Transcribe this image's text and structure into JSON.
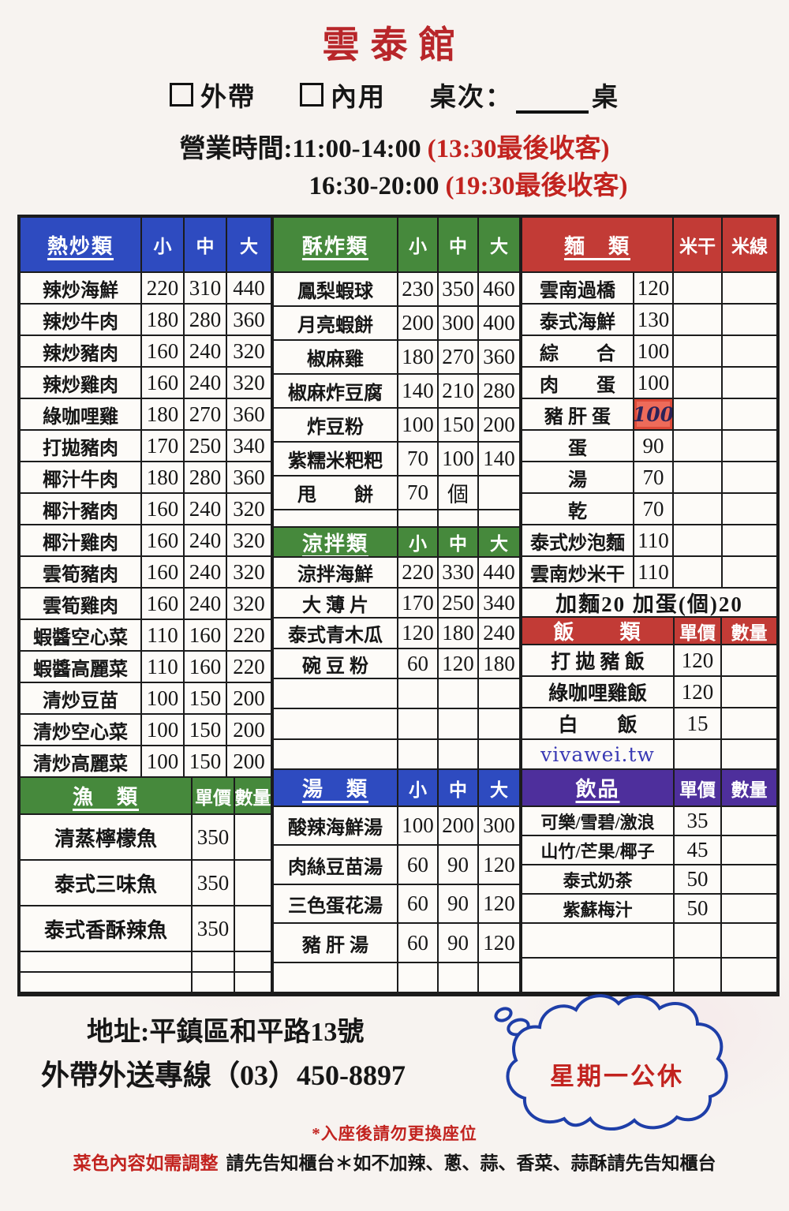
{
  "header": {
    "title": "雲泰館",
    "takeout_label": "外帶",
    "dinein_label": "內用",
    "table_label": "桌次：",
    "table_suffix": "桌",
    "hours_line1": "營業時間:11:00-14:00",
    "hours_note1": "(13:30最後收客)",
    "hours_line2": "16:30-20:00",
    "hours_note2": "(19:30最後收客)"
  },
  "sections": {
    "hot": {
      "header": [
        "熱炒類",
        "小",
        "中",
        "大"
      ],
      "rows": [
        [
          "辣炒海鮮",
          "220",
          "310",
          "440"
        ],
        [
          "辣炒牛肉",
          "180",
          "280",
          "360"
        ],
        [
          "辣炒豬肉",
          "160",
          "240",
          "320"
        ],
        [
          "辣炒雞肉",
          "160",
          "240",
          "320"
        ],
        [
          "綠咖哩雞",
          "180",
          "270",
          "360"
        ],
        [
          "打拋豬肉",
          "170",
          "250",
          "340"
        ],
        [
          "椰汁牛肉",
          "180",
          "280",
          "360"
        ],
        [
          "椰汁豬肉",
          "160",
          "240",
          "320"
        ],
        [
          "椰汁雞肉",
          "160",
          "240",
          "320"
        ],
        [
          "雲筍豬肉",
          "160",
          "240",
          "320"
        ],
        [
          "雲筍雞肉",
          "160",
          "240",
          "320"
        ],
        [
          "蝦醬空心菜",
          "110",
          "160",
          "220"
        ],
        [
          "蝦醬高麗菜",
          "110",
          "160",
          "220"
        ],
        [
          "清炒豆苗",
          "100",
          "150",
          "200"
        ],
        [
          "清炒空心菜",
          "100",
          "150",
          "200"
        ],
        [
          "清炒高麗菜",
          "100",
          "150",
          "200"
        ]
      ]
    },
    "fish": {
      "header": [
        "漁　類",
        "單價",
        "數量"
      ],
      "rows": [
        [
          "清蒸檸檬魚",
          "350",
          ""
        ],
        [
          "泰式三味魚",
          "350",
          ""
        ],
        [
          "泰式香酥辣魚",
          "350",
          ""
        ],
        [
          "",
          "",
          ""
        ],
        [
          "",
          "",
          ""
        ]
      ]
    },
    "fried": {
      "header": [
        "酥炸類",
        "小",
        "中",
        "大"
      ],
      "rows": [
        [
          "鳳梨蝦球",
          "230",
          "350",
          "460"
        ],
        [
          "月亮蝦餅",
          "200",
          "300",
          "400"
        ],
        [
          "椒麻雞",
          "180",
          "270",
          "360"
        ],
        [
          "椒麻炸豆腐",
          "140",
          "210",
          "280"
        ],
        [
          "炸豆粉",
          "100",
          "150",
          "200"
        ],
        [
          "紫糯米粑粑",
          "70",
          "100",
          "140"
        ],
        [
          "甩　　餅",
          "70",
          "個",
          ""
        ],
        [
          "",
          "",
          "",
          ""
        ]
      ]
    },
    "cold": {
      "header": [
        "涼拌類",
        "小",
        "中",
        "大"
      ],
      "rows": [
        [
          "涼拌海鮮",
          "220",
          "330",
          "440"
        ],
        [
          "大 薄 片",
          "170",
          "250",
          "340"
        ],
        [
          "泰式青木瓜",
          "120",
          "180",
          "240"
        ],
        [
          "碗 豆 粉",
          "60",
          "120",
          "180"
        ],
        [
          "",
          "",
          "",
          ""
        ],
        [
          "",
          "",
          "",
          ""
        ],
        [
          "",
          "",
          "",
          ""
        ]
      ]
    },
    "soup": {
      "header": [
        "湯　類",
        "小",
        "中",
        "大"
      ],
      "rows": [
        [
          "酸辣海鮮湯",
          "100",
          "200",
          "300"
        ],
        [
          "肉絲豆苗湯",
          "60",
          "90",
          "120"
        ],
        [
          "三色蛋花湯",
          "60",
          "90",
          "120"
        ],
        [
          "豬 肝 湯",
          "60",
          "90",
          "120"
        ],
        [
          "",
          "",
          "",
          ""
        ]
      ]
    },
    "noodles": {
      "header": [
        "麵　類",
        "米干",
        "米線"
      ],
      "rows": [
        [
          "雲南過橋",
          "120",
          "",
          ""
        ],
        [
          "泰式海鮮",
          "130",
          "",
          ""
        ],
        [
          "綜　　合",
          "100",
          "",
          ""
        ],
        [
          "肉　　蛋",
          "100",
          "",
          ""
        ],
        [
          "豬 肝 蛋",
          "100",
          "",
          ""
        ],
        [
          "蛋",
          "90",
          "",
          ""
        ],
        [
          "湯",
          "70",
          "",
          ""
        ],
        [
          "乾",
          "70",
          "",
          ""
        ],
        [
          "泰式炒泡麵",
          "110",
          "",
          ""
        ],
        [
          "雲南炒米干",
          "110",
          "",
          ""
        ]
      ],
      "extra_note": "加麵20 加蛋(個)20"
    },
    "rice": {
      "header": [
        "飯　　類",
        "單價",
        "數量"
      ],
      "rows": [
        [
          "打 拋 豬 飯",
          "120",
          ""
        ],
        [
          "綠咖哩雞飯",
          "120",
          ""
        ],
        [
          "白　　飯",
          "15",
          ""
        ],
        [
          "",
          "",
          ""
        ]
      ]
    },
    "drinks": {
      "header": [
        "飲品",
        "單價",
        "數量"
      ],
      "rows": [
        [
          "可樂/雪碧/激浪",
          "35",
          ""
        ],
        [
          "山竹/芒果/椰子",
          "45",
          ""
        ],
        [
          "泰式奶茶",
          "50",
          ""
        ],
        [
          "紫蘇梅汁",
          "50",
          ""
        ],
        [
          "",
          "",
          ""
        ],
        [
          "",
          "",
          ""
        ]
      ]
    }
  },
  "watermark": "vivawei.tw",
  "footer": {
    "address": "地址:平鎮區和平路13號",
    "phone": "外帶外送專線（03）450-8897",
    "closed_note": "星期一公休",
    "note1": "*入座後請勿更換座位",
    "note2_red": "菜色內容如需調整",
    "note2_black": "請先告知櫃台＊如不加辣、蔥、蒜、香菜、蒜酥請先告知櫃台"
  },
  "colors": {
    "header_blue": "#2e4bc0",
    "header_green": "#46893c",
    "header_red": "#c23b36",
    "header_purple": "#4e2f9c",
    "title_red": "#b8262a",
    "accent_red": "#c2231f",
    "highlight_sticker": "#ee6b5a",
    "handwriting_ink": "#2b2258",
    "watermark_blue": "#3a3ab4",
    "cloud_blue": "#1e3ea8",
    "paper": "#f7f3f0"
  }
}
